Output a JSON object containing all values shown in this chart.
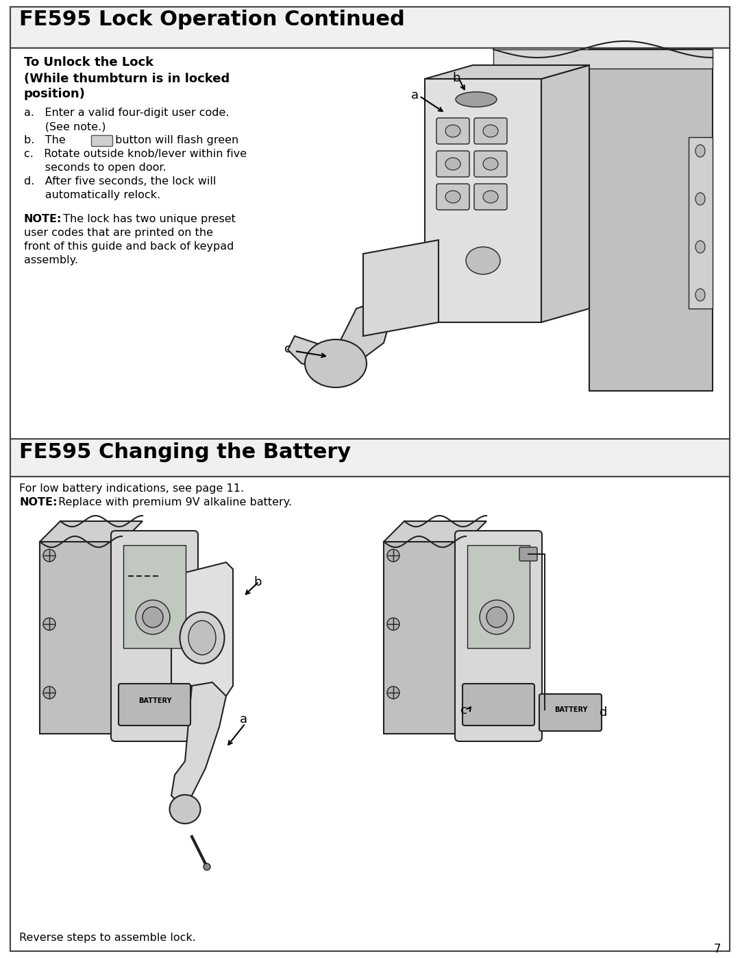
{
  "bg_color": "#ffffff",
  "page_number": "7",
  "section1_title": "FE595 Lock Operation Continued",
  "section1_subtitle": "To Unlock the Lock",
  "section1_subtitle2": "(While thumbturn is in locked",
  "section1_subtitle3": "position)",
  "step_a": "a.   Enter a valid four-digit user code.",
  "step_a2": "      (See note.)",
  "step_b_pre": "b.   The ",
  "step_b_post": " button will flash green",
  "step_c": "c.   Rotate outside knob/lever within five",
  "step_c2": "      seconds to open door.",
  "step_d": "d.   After five seconds, the lock will",
  "step_d2": "      automatically relock.",
  "note_bold": "NOTE:",
  "note_rest": " The lock has two unique preset",
  "note2": "user codes that are printed on the",
  "note3": "front of this guide and back of keypad",
  "note4": "assembly.",
  "section2_title": "FE595 Changing the Battery",
  "s2_line1": "For low battery indications, see page 11.",
  "s2_note_bold": "NOTE:",
  "s2_note_rest": " Replace with premium 9V alkaline battery.",
  "footer_text": "Reverse steps to assemble lock.",
  "gray_wall": "#c8c8c8",
  "gray_panel": "#d8d8d8",
  "gray_light": "#e8e8e8",
  "gray_mid": "#b0b0b0",
  "gray_dark": "#808080",
  "line_color": "#222222"
}
